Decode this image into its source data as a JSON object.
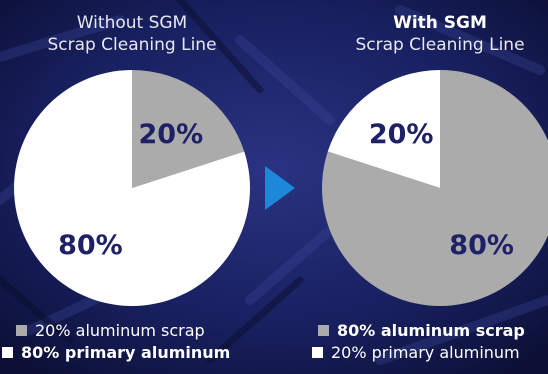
{
  "colors": {
    "background": "#141a4c",
    "scrap": "#ababab",
    "primary": "#ffffff",
    "label_text": "#1f2166",
    "arrow": "#1e88d8"
  },
  "icons": [
    "play-arrow-icon"
  ],
  "left": {
    "title_line1": "Without SGM",
    "title_line2": "Scrap Cleaning Line",
    "legend_scrap": "20% aluminum scrap",
    "legend_primary": "80% primary aluminum"
  },
  "right": {
    "title_line1": "With SGM",
    "title_line2": "Scrap Cleaning Line",
    "legend_scrap": "80% aluminum scrap",
    "legend_primary": "20% primary aluminum"
  },
  "chart_data": [
    {
      "type": "pie",
      "title": "Without SGM Scrap Cleaning Line",
      "slices": [
        {
          "name": "aluminum scrap",
          "value": 20,
          "label": "20%",
          "color": "#ababab"
        },
        {
          "name": "primary aluminum",
          "value": 80,
          "label": "80%",
          "color": "#ffffff"
        }
      ],
      "legend": "bottom"
    },
    {
      "type": "pie",
      "title": "With SGM Scrap Cleaning Line",
      "slices": [
        {
          "name": "aluminum scrap",
          "value": 80,
          "label": "80%",
          "color": "#ababab"
        },
        {
          "name": "primary aluminum",
          "value": 20,
          "label": "20%",
          "color": "#ffffff"
        }
      ],
      "legend": "bottom"
    }
  ]
}
